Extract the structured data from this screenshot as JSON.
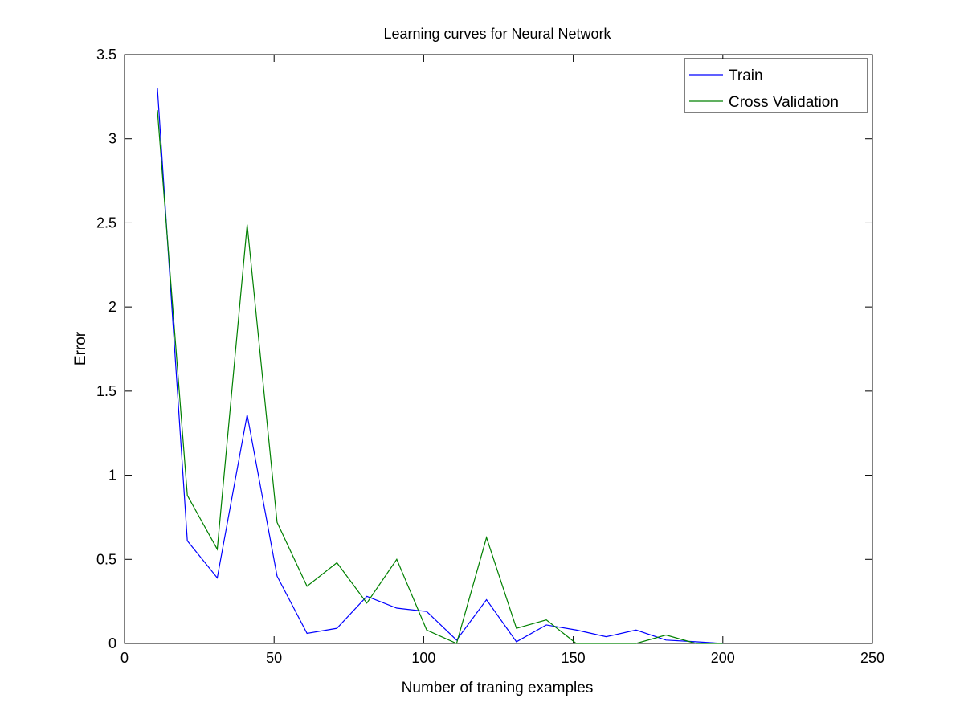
{
  "chart_data": {
    "type": "line",
    "title": "Learning curves for Neural Network",
    "xlabel": "Number of traning examples",
    "ylabel": "Error",
    "xlim": [
      0,
      250
    ],
    "ylim": [
      0,
      3.5
    ],
    "xticks": [
      0,
      50,
      100,
      150,
      200,
      250
    ],
    "yticks": [
      0,
      0.5,
      1,
      1.5,
      2,
      2.5,
      3,
      3.5
    ],
    "xtick_labels": [
      "0",
      "50",
      "100",
      "150",
      "200",
      "250"
    ],
    "ytick_labels": [
      "0",
      "0.5",
      "1",
      "1.5",
      "2",
      "2.5",
      "3",
      "3.5"
    ],
    "grid": false,
    "legend_position": "top-right",
    "x": [
      11,
      21,
      31,
      41,
      51,
      61,
      71,
      81,
      91,
      101,
      111,
      121,
      131,
      141,
      151,
      161,
      171,
      181,
      191,
      200
    ],
    "series": [
      {
        "name": "Train",
        "color": "#0000ff",
        "values": [
          3.3,
          0.61,
          0.39,
          1.36,
          0.4,
          0.06,
          0.09,
          0.28,
          0.21,
          0.19,
          0.02,
          0.26,
          0.01,
          0.11,
          0.08,
          0.04,
          0.08,
          0.02,
          0.01,
          0.0
        ]
      },
      {
        "name": "Cross Validation",
        "color": "#008000",
        "values": [
          3.17,
          0.88,
          0.56,
          2.49,
          0.72,
          0.34,
          0.48,
          0.24,
          0.5,
          0.08,
          0.0,
          0.63,
          0.09,
          0.14,
          0.0,
          0.0,
          0.0,
          0.05,
          0.0,
          0.0
        ]
      }
    ]
  }
}
